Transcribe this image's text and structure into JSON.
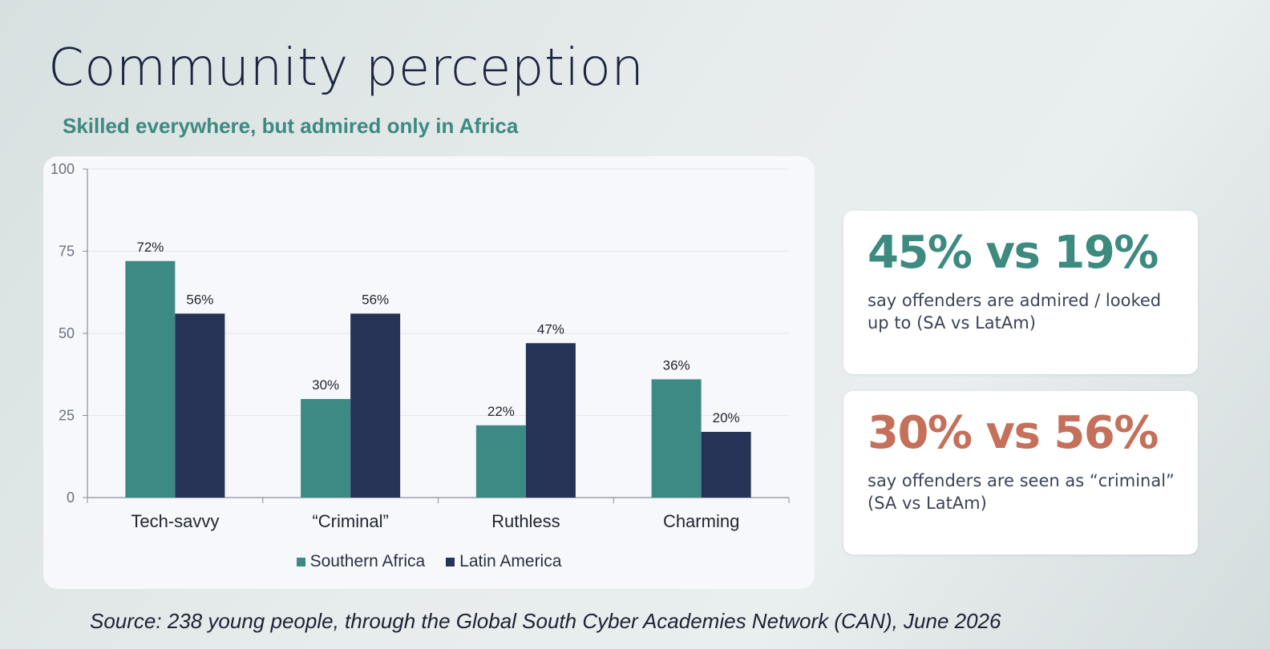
{
  "title": "Community perception",
  "subtitle": "Skilled everywhere, but admired only in Africa",
  "colors": {
    "southern_africa": "#3d8a84",
    "latin_america": "#263256",
    "stat_teal": "#3d8a7f",
    "stat_orange": "#c4705a"
  },
  "chart_data": {
    "type": "bar",
    "categories": [
      "Tech-savvy",
      "“Criminal”",
      "Ruthless",
      "Charming"
    ],
    "series": [
      {
        "name": "Southern Africa",
        "values": [
          72,
          30,
          22,
          36
        ],
        "labels": [
          "72%",
          "30%",
          "22%",
          "36%"
        ]
      },
      {
        "name": "Latin America",
        "values": [
          56,
          56,
          47,
          20
        ],
        "labels": [
          "56%",
          "56%",
          "47%",
          "20%"
        ]
      }
    ],
    "ylim": [
      0,
      100
    ],
    "yticks": [
      0,
      25,
      50,
      75,
      100
    ],
    "grid": true,
    "legend": "bottom"
  },
  "stats": [
    {
      "value": "45% vs 19%",
      "description": "say offenders are admired / looked up to (SA vs LatAm)"
    },
    {
      "value": "30% vs 56%",
      "description": "say offenders are seen as “criminal” (SA vs LatAm)"
    }
  ],
  "source": "Source: 238 young people, through the Global South Cyber Academies Network (CAN), June 2026"
}
